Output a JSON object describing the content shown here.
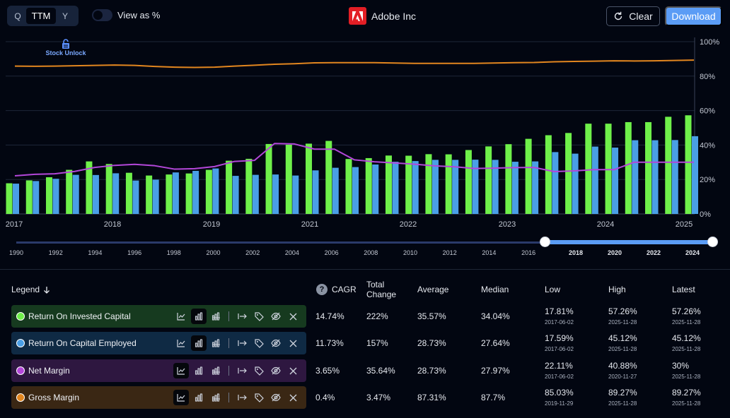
{
  "header": {
    "period_options": [
      "Q",
      "TTM",
      "Y"
    ],
    "period_selected": "TTM",
    "view_as_percent_label": "View as %",
    "company_name": "Adobe Inc",
    "clear_label": "Clear",
    "download_label": "Download"
  },
  "watermark": "Stock Unlock",
  "chart_data": {
    "type": "bar",
    "title": "Adobe Inc",
    "y_axis": {
      "min": 0,
      "max": 100,
      "ticks": [
        "0%",
        "20%",
        "40%",
        "60%",
        "80%",
        "100%"
      ],
      "position": "right"
    },
    "x_year_labels": [
      "2017",
      "2018",
      "2019",
      "2021",
      "2022",
      "2023",
      "2024",
      "2025"
    ],
    "periods": [
      "2017-06",
      "2017-09",
      "2017-12",
      "2018-03",
      "2018-06",
      "2018-09",
      "2018-12",
      "2019-03",
      "2019-06",
      "2019-09",
      "2019-12",
      "2020-03",
      "2020-06",
      "2020-09",
      "2020-11",
      "2021-03",
      "2021-06",
      "2021-09",
      "2021-12",
      "2022-03",
      "2022-06",
      "2022-09",
      "2022-12",
      "2023-03",
      "2023-06",
      "2023-09",
      "2023-12",
      "2024-03",
      "2024-06",
      "2024-09",
      "2024-12",
      "2025-03",
      "2025-06",
      "2025-09",
      "2025-11"
    ],
    "series": [
      {
        "name": "Return On Invested Capital",
        "type": "bar",
        "color": "#6ff04a",
        "values": [
          17.81,
          19.5,
          21.3,
          25.6,
          30.5,
          29.0,
          23.9,
          22.3,
          22.9,
          23.5,
          25.6,
          30.9,
          32.0,
          40.6,
          40.2,
          40.8,
          42.4,
          31.9,
          32.4,
          33.9,
          33.8,
          34.7,
          34.6,
          37.1,
          39.2,
          40.5,
          43.6,
          45.7,
          47.0,
          52.4,
          52.4,
          53.3,
          53.3,
          56.4,
          57.26
        ]
      },
      {
        "name": "Return On Capital Employed",
        "type": "bar",
        "color": "#4a9fe6",
        "values": [
          17.59,
          19.1,
          20.4,
          22.7,
          22.6,
          23.6,
          19.4,
          19.9,
          24.1,
          25.0,
          26.4,
          22.1,
          22.7,
          22.9,
          22.3,
          25.3,
          26.8,
          27.2,
          28.7,
          30.3,
          30.7,
          31.4,
          31.4,
          31.5,
          31.4,
          30.3,
          30.5,
          35.9,
          35.0,
          39.1,
          38.5,
          42.8,
          42.8,
          42.9,
          45.12
        ]
      },
      {
        "name": "Net Margin",
        "type": "line",
        "color": "#b347d9",
        "values": [
          22.11,
          23.0,
          23.3,
          24.7,
          27.0,
          28.2,
          28.8,
          28.0,
          26.0,
          26.3,
          27.5,
          30.5,
          31.1,
          40.88,
          40.6,
          37.6,
          37.6,
          31.4,
          30.3,
          29.6,
          28.9,
          27.9,
          27.4,
          26.4,
          26.6,
          26.9,
          27.0,
          24.6,
          25.0,
          25.7,
          25.7,
          30.0,
          30.0,
          30.0,
          30.0
        ]
      },
      {
        "name": "Gross Margin",
        "type": "line",
        "color": "#e2861f",
        "values": [
          85.8,
          85.7,
          85.8,
          86.0,
          86.2,
          86.4,
          86.2,
          85.6,
          85.2,
          85.03,
          85.2,
          85.8,
          86.3,
          86.9,
          87.2,
          87.7,
          87.8,
          87.8,
          87.8,
          87.6,
          87.4,
          87.4,
          87.4,
          87.4,
          87.6,
          87.8,
          87.9,
          88.3,
          88.5,
          88.7,
          88.9,
          88.8,
          88.9,
          89.1,
          89.27
        ]
      }
    ]
  },
  "timeline": {
    "start_labels": [
      "1990",
      "1992",
      "1994",
      "1996",
      "1998",
      "2000",
      "2002",
      "2004",
      "2006",
      "2008",
      "2010",
      "2012",
      "2014",
      "2016"
    ],
    "selected_labels": [
      "2018",
      "2020",
      "2022",
      "2024"
    ]
  },
  "table": {
    "legend_label": "Legend",
    "columns": {
      "cagr": "CAGR",
      "total_change": "Total Change",
      "average": "Average",
      "median": "Median",
      "low": "Low",
      "high": "High",
      "latest": "Latest"
    },
    "rows": [
      {
        "name": "Return On Invested Capital",
        "color": "#6ff04a",
        "chip_bg": "#163a1f",
        "cagr": "14.74%",
        "total_change": "222%",
        "average": "35.57%",
        "median": "34.04%",
        "low": "17.81%",
        "low_date": "2017-06-02",
        "high": "57.26%",
        "high_date": "2025-11-28",
        "latest": "57.26%",
        "latest_date": "2025-11-28",
        "active_tool": "bar"
      },
      {
        "name": "Return On Capital Employed",
        "color": "#4a9fe6",
        "chip_bg": "#0f2a44",
        "cagr": "11.73%",
        "total_change": "157%",
        "average": "28.73%",
        "median": "27.64%",
        "low": "17.59%",
        "low_date": "2017-06-02",
        "high": "45.12%",
        "high_date": "2025-11-28",
        "latest": "45.12%",
        "latest_date": "2025-11-28",
        "active_tool": "bar"
      },
      {
        "name": "Net Margin",
        "color": "#b347d9",
        "chip_bg": "#2e1740",
        "cagr": "3.65%",
        "total_change": "35.64%",
        "average": "28.73%",
        "median": "27.97%",
        "low": "22.11%",
        "low_date": "2017-06-02",
        "high": "40.88%",
        "high_date": "2020-11-27",
        "latest": "30%",
        "latest_date": "2025-11-28",
        "active_tool": "line"
      },
      {
        "name": "Gross Margin",
        "color": "#e2861f",
        "chip_bg": "#3a2714",
        "cagr": "0.4%",
        "total_change": "3.47%",
        "average": "87.31%",
        "median": "87.7%",
        "low": "85.03%",
        "low_date": "2019-11-29",
        "high": "89.27%",
        "high_date": "2025-11-28",
        "latest": "89.27%",
        "latest_date": "2025-11-28",
        "active_tool": "line"
      }
    ]
  }
}
